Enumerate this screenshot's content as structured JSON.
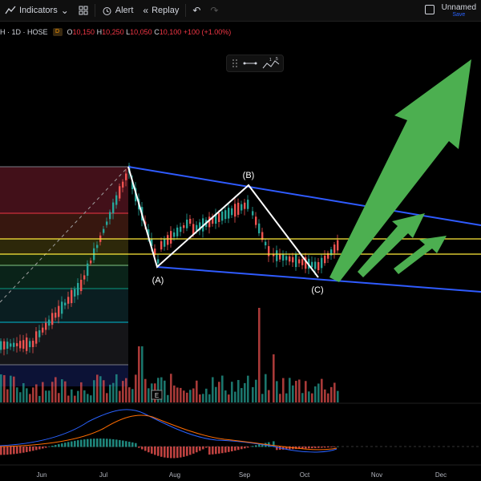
{
  "toolbar": {
    "indicators_label": "Indicators",
    "alert_label": "Alert",
    "replay_label": "Replay",
    "layout_name": "Unnamed",
    "save_label": "Save"
  },
  "legend": {
    "symbol": "H · 1D · HOSE",
    "badge": "D",
    "open_key": "O",
    "open": "10,150",
    "high_key": "H",
    "high": "10,250",
    "low_key": "L",
    "low": "10,050",
    "close_key": "C",
    "close": "10,100",
    "change": "+100 (+1.00%)"
  },
  "drawing_toolbar": {
    "step_labels": [
      "1",
      "5"
    ]
  },
  "waves": {
    "a": "(A)",
    "b": "(B)",
    "c": "(C)"
  },
  "volume_marker": "E",
  "xaxis": {
    "labels": [
      "Jun",
      "Jul",
      "Aug",
      "Sep",
      "Oct",
      "Nov",
      "Dec"
    ]
  },
  "colors": {
    "up": "#26a69a",
    "down": "#ef5350",
    "channel": "#2f5bff",
    "arrow": "#4caf50",
    "hline": "#ffeb3b",
    "macd": "#2962ff",
    "signal": "#ff6d00"
  }
}
